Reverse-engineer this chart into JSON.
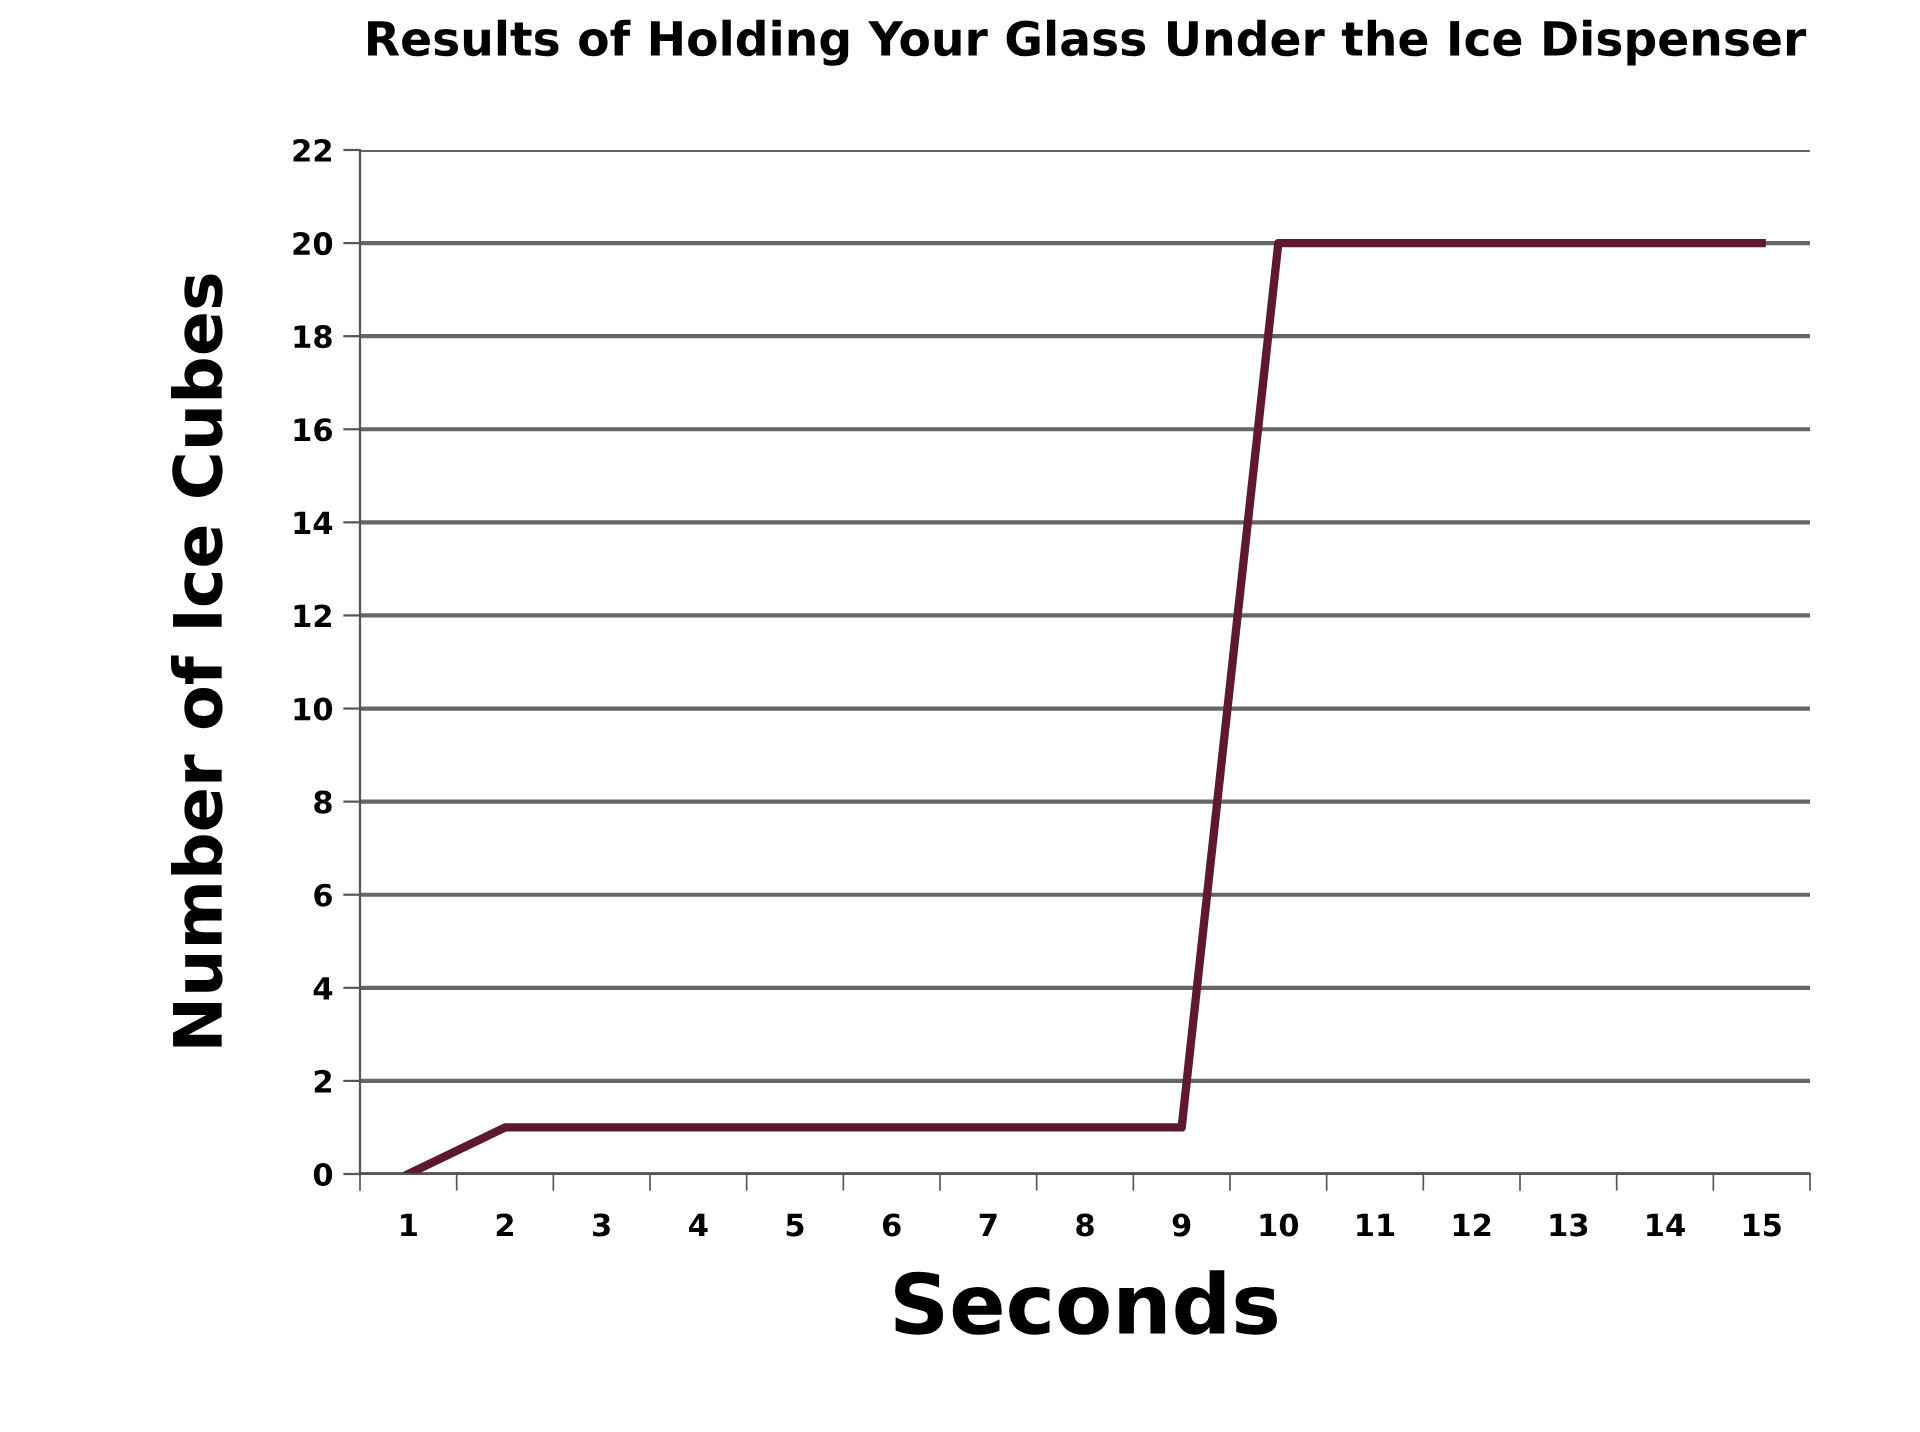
{
  "chart_data": {
    "type": "line",
    "title": "Results of Holding Your Glass Under the Ice Dispenser",
    "xlabel": "Seconds",
    "ylabel": "Number of Ice Cubes",
    "categories": [
      "1",
      "2",
      "3",
      "4",
      "5",
      "6",
      "7",
      "8",
      "9",
      "10",
      "11",
      "12",
      "13",
      "14",
      "15"
    ],
    "series": [
      {
        "color": "#5e1a2c",
        "values": [
          0,
          1,
          1,
          1,
          1,
          1,
          1,
          1,
          1,
          20,
          20,
          20,
          20,
          20,
          20
        ]
      }
    ],
    "ylim": [
      0,
      22
    ],
    "yticks": [
      0,
      2,
      4,
      6,
      8,
      10,
      12,
      14,
      16,
      18,
      20,
      22
    ],
    "grid": "y",
    "legend": false
  }
}
